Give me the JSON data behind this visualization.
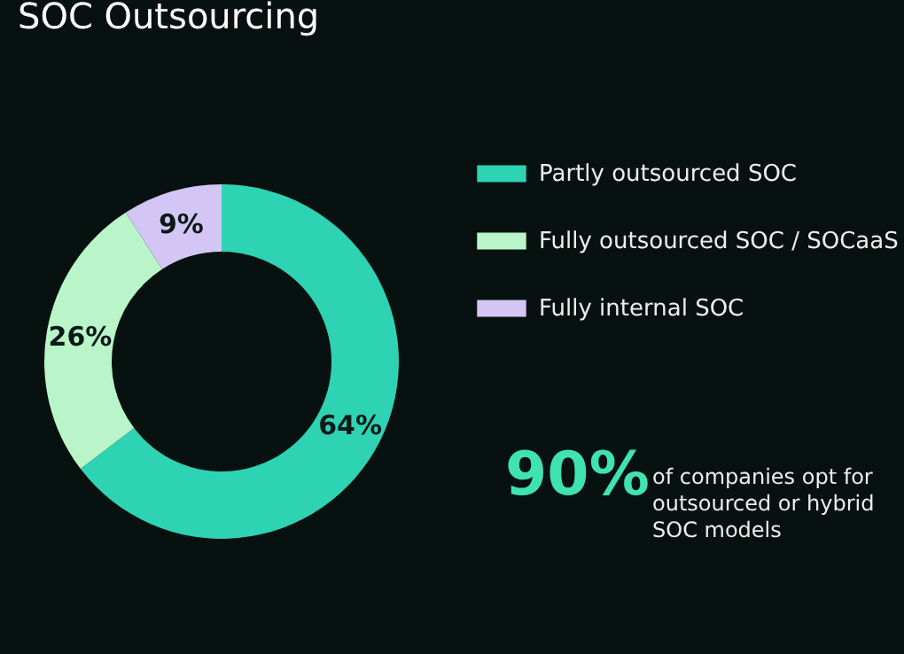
{
  "chart_data": {
    "type": "donut",
    "title": "SOC Outsourcing",
    "categories": [
      "Partly outsourced SOC",
      "Fully outsourced SOC / SOCaaS",
      "Fully internal SOC"
    ],
    "values": [
      64,
      26,
      9
    ],
    "colors": [
      "#2ed3b4",
      "#b9f5c9",
      "#d4c6f4"
    ],
    "value_labels": [
      "64%",
      "26%",
      "9%"
    ],
    "legend": "right",
    "annotations": [
      "90%",
      "of companies opt for outsourced or hybrid SOC models"
    ]
  }
}
